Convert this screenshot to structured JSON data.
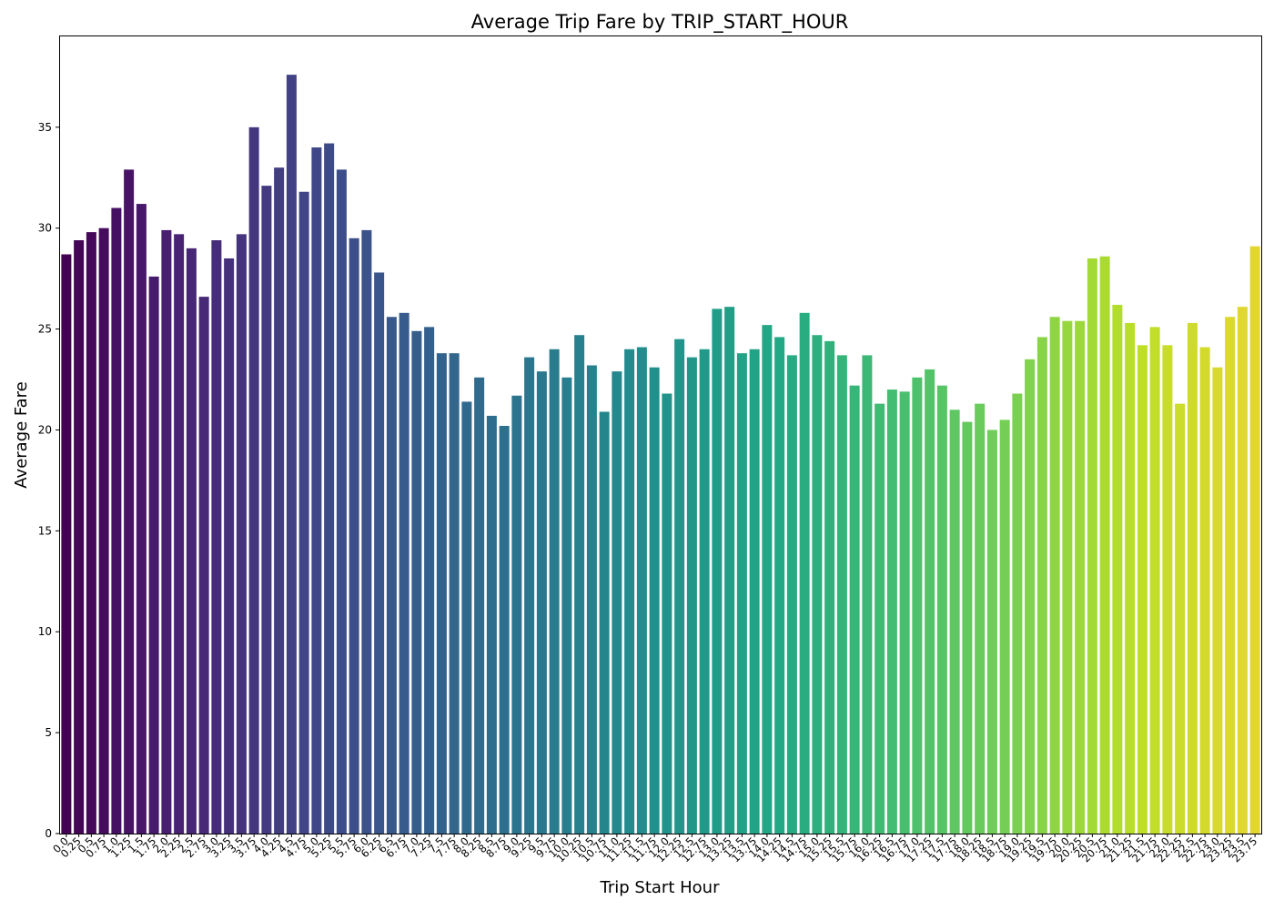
{
  "chart_data": {
    "type": "bar",
    "title": "Average Trip Fare by TRIP_START_HOUR",
    "xlabel": "Trip Start Hour",
    "ylabel": "Average Fare",
    "categories": [
      "0.0",
      "0.25",
      "0.5",
      "0.75",
      "1.0",
      "1.25",
      "1.5",
      "1.75",
      "2.0",
      "2.25",
      "2.5",
      "2.75",
      "3.0",
      "3.25",
      "3.5",
      "3.75",
      "4.0",
      "4.25",
      "4.5",
      "4.75",
      "5.0",
      "5.25",
      "5.5",
      "5.75",
      "6.0",
      "6.25",
      "6.5",
      "6.75",
      "7.0",
      "7.25",
      "7.5",
      "7.75",
      "8.0",
      "8.25",
      "8.5",
      "8.75",
      "9.0",
      "9.25",
      "9.5",
      "9.75",
      "10.0",
      "10.25",
      "10.5",
      "10.75",
      "11.0",
      "11.25",
      "11.5",
      "11.75",
      "12.0",
      "12.25",
      "12.5",
      "12.75",
      "13.0",
      "13.25",
      "13.5",
      "13.75",
      "14.0",
      "14.25",
      "14.5",
      "14.75",
      "15.0",
      "15.25",
      "15.5",
      "15.75",
      "16.0",
      "16.25",
      "16.5",
      "16.75",
      "17.0",
      "17.25",
      "17.5",
      "17.75",
      "18.0",
      "18.25",
      "18.5",
      "18.75",
      "19.0",
      "19.25",
      "19.5",
      "19.75",
      "20.0",
      "20.25",
      "20.5",
      "20.75",
      "21.0",
      "21.25",
      "21.5",
      "21.75",
      "22.0",
      "22.25",
      "22.5",
      "22.75",
      "23.0",
      "23.25",
      "23.5",
      "23.75"
    ],
    "values": [
      28.7,
      29.4,
      29.8,
      30.0,
      31.0,
      32.9,
      31.2,
      27.6,
      29.9,
      29.7,
      29.0,
      26.6,
      29.4,
      28.5,
      29.7,
      35.0,
      32.1,
      33.0,
      37.6,
      31.8,
      34.0,
      34.2,
      32.9,
      29.5,
      29.9,
      27.8,
      25.6,
      25.8,
      24.9,
      25.1,
      23.8,
      23.8,
      21.4,
      22.6,
      20.7,
      20.2,
      21.7,
      23.6,
      22.9,
      24.0,
      22.6,
      24.7,
      23.2,
      20.9,
      22.9,
      24.0,
      24.1,
      23.1,
      21.8,
      24.5,
      23.6,
      24.0,
      26.0,
      26.1,
      23.8,
      24.0,
      25.2,
      24.6,
      23.7,
      25.8,
      24.7,
      24.4,
      23.7,
      22.2,
      23.7,
      21.3,
      22.0,
      21.9,
      22.6,
      23.0,
      22.2,
      21.0,
      20.4,
      21.3,
      20.0,
      20.5,
      21.8,
      23.5,
      24.6,
      25.6,
      25.4,
      25.4,
      28.5,
      28.6,
      26.2,
      25.3,
      24.2,
      25.1,
      24.2,
      21.3,
      25.3,
      24.1,
      23.1,
      25.6,
      26.1,
      29.1
    ],
    "yticks": [
      0,
      5,
      10,
      15,
      20,
      25,
      30,
      35
    ],
    "ylim": [
      0,
      39.5
    ],
    "colormap": "viridis",
    "colors": {
      "start": "#440154",
      "end": "#e4d631"
    },
    "grid": false,
    "legend": "none"
  }
}
